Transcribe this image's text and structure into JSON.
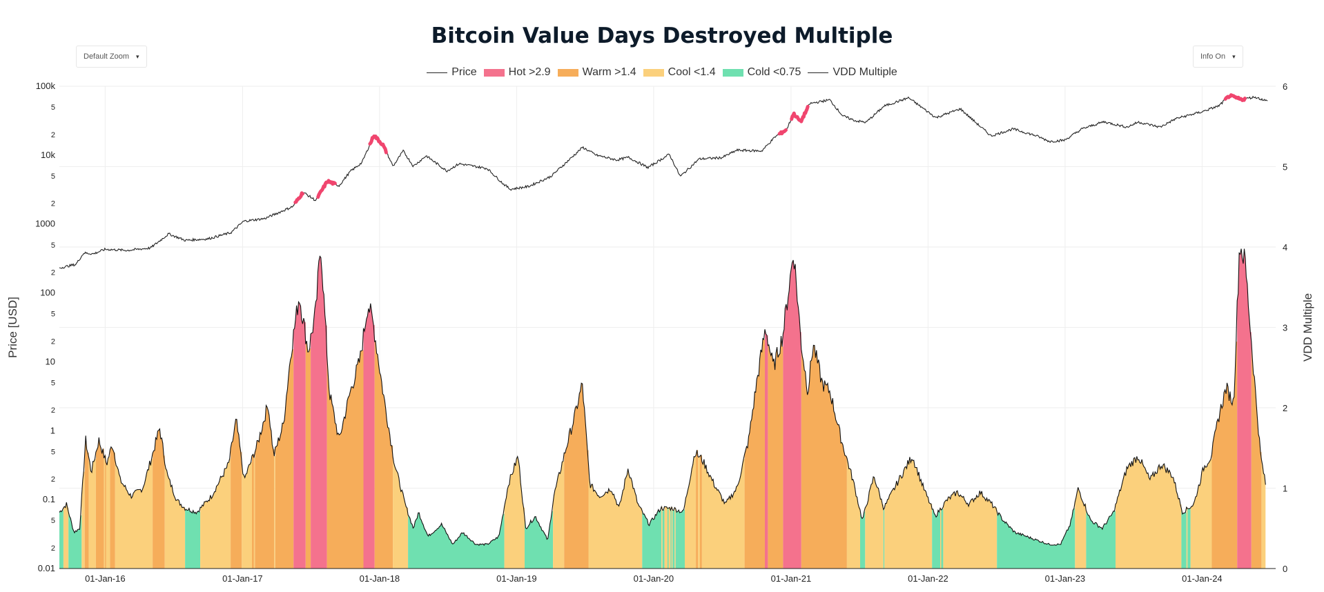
{
  "title": "Bitcoin Value Days Destroyed Multiple",
  "controls": {
    "zoom_label": "Default Zoom",
    "info_label": "Info On",
    "caret": "▾"
  },
  "legend": [
    {
      "name": "Price",
      "kind": "line",
      "color": "#222222"
    },
    {
      "name": "Hot >2.9",
      "kind": "box",
      "color": "#f4728d"
    },
    {
      "name": "Warm >1.4",
      "kind": "box",
      "color": "#f6ad5a"
    },
    {
      "name": "Cool <1.4",
      "kind": "box",
      "color": "#fbd07c"
    },
    {
      "name": "Cold <0.75",
      "kind": "box",
      "color": "#6fe0b0"
    },
    {
      "name": "VDD Multiple",
      "kind": "line",
      "color": "#222222"
    }
  ],
  "chart_data": {
    "type": "line",
    "title": "Bitcoin Value Days Destroyed Multiple",
    "xlabel": "",
    "ylabel": "Price [USD]",
    "y2label": "VDD Multiple",
    "xlim": [
      "2015-09-01",
      "2024-07-15"
    ],
    "x_ticks": [
      "01-Jan-16",
      "01-Jan-17",
      "01-Jan-18",
      "01-Jan-19",
      "01-Jan-20",
      "01-Jan-21",
      "01-Jan-22",
      "01-Jan-23",
      "01-Jan-24"
    ],
    "x_tick_dates": [
      "2016-01-01",
      "2017-01-01",
      "2018-01-01",
      "2019-01-01",
      "2020-01-01",
      "2021-01-01",
      "2022-01-01",
      "2023-01-01",
      "2024-01-01"
    ],
    "y_scale": "log",
    "ylim": [
      0.01,
      100000
    ],
    "y_ticks_major": [
      "0.01",
      "0.1",
      "1",
      "10",
      "100",
      "1000",
      "10k",
      "100k"
    ],
    "y_ticks_minor": [
      "2",
      "5"
    ],
    "y2lim": [
      0,
      6
    ],
    "y2_ticks": [
      "0",
      "1",
      "2",
      "3",
      "4",
      "5",
      "6"
    ],
    "bands": [
      {
        "name": "Hot >2.9",
        "min": 2.9,
        "color": "#f4728d"
      },
      {
        "name": "Warm >1.4",
        "min": 1.4,
        "color": "#f6ad5a"
      },
      {
        "name": "Cool <1.4",
        "min": 0.75,
        "color": "#fbd07c"
      },
      {
        "name": "Cold <0.75",
        "min": 0,
        "color": "#6fe0b0"
      }
    ],
    "series": [
      {
        "name": "Price",
        "axis": "y",
        "color": "#222222",
        "hot_color": "#f0456e",
        "points": [
          [
            "2015-09-01",
            230
          ],
          [
            "2015-10-15",
            260
          ],
          [
            "2015-11-05",
            380
          ],
          [
            "2015-12-01",
            370
          ],
          [
            "2016-01-01",
            430
          ],
          [
            "2016-03-01",
            415
          ],
          [
            "2016-05-01",
            450
          ],
          [
            "2016-06-18",
            720
          ],
          [
            "2016-08-01",
            580
          ],
          [
            "2016-10-01",
            610
          ],
          [
            "2016-12-01",
            750
          ],
          [
            "2017-01-04",
            1100
          ],
          [
            "2017-03-01",
            1200
          ],
          [
            "2017-05-15",
            1800
          ],
          [
            "2017-06-11",
            2900
          ],
          [
            "2017-07-15",
            2200
          ],
          [
            "2017-08-15",
            4200
          ],
          [
            "2017-09-15",
            3600
          ],
          [
            "2017-10-15",
            5800
          ],
          [
            "2017-11-15",
            7800
          ],
          [
            "2017-12-17",
            19500
          ],
          [
            "2018-01-10",
            14000
          ],
          [
            "2018-02-06",
            6900
          ],
          [
            "2018-03-05",
            11500
          ],
          [
            "2018-04-01",
            6900
          ],
          [
            "2018-05-05",
            9800
          ],
          [
            "2018-06-29",
            5900
          ],
          [
            "2018-08-01",
            7500
          ],
          [
            "2018-10-15",
            6400
          ],
          [
            "2018-11-25",
            3900
          ],
          [
            "2018-12-15",
            3200
          ],
          [
            "2019-02-01",
            3500
          ],
          [
            "2019-04-02",
            4900
          ],
          [
            "2019-05-15",
            8000
          ],
          [
            "2019-06-26",
            13000
          ],
          [
            "2019-08-01",
            10000
          ],
          [
            "2019-09-25",
            8500
          ],
          [
            "2019-10-26",
            9300
          ],
          [
            "2019-12-17",
            6600
          ],
          [
            "2020-02-12",
            10300
          ],
          [
            "2020-03-12",
            4900
          ],
          [
            "2020-05-01",
            8800
          ],
          [
            "2020-07-01",
            9200
          ],
          [
            "2020-08-10",
            11800
          ],
          [
            "2020-10-15",
            11500
          ],
          [
            "2020-11-20",
            18500
          ],
          [
            "2020-12-20",
            23500
          ],
          [
            "2021-01-08",
            40000
          ],
          [
            "2021-01-27",
            30500
          ],
          [
            "2021-02-20",
            56000
          ],
          [
            "2021-04-14",
            63500
          ],
          [
            "2021-05-19",
            37000
          ],
          [
            "2021-06-22",
            31500
          ],
          [
            "2021-07-20",
            30000
          ],
          [
            "2021-09-06",
            51500
          ],
          [
            "2021-11-10",
            68000
          ],
          [
            "2022-01-22",
            35000
          ],
          [
            "2022-03-28",
            47000
          ],
          [
            "2022-05-12",
            28500
          ],
          [
            "2022-06-18",
            19000
          ],
          [
            "2022-08-15",
            24000
          ],
          [
            "2022-10-15",
            19200
          ],
          [
            "2022-11-21",
            15800
          ],
          [
            "2022-12-31",
            16500
          ],
          [
            "2023-02-15",
            24000
          ],
          [
            "2023-04-14",
            30500
          ],
          [
            "2023-06-15",
            25500
          ],
          [
            "2023-07-15",
            30200
          ],
          [
            "2023-09-11",
            25500
          ],
          [
            "2023-10-24",
            34000
          ],
          [
            "2023-12-31",
            42500
          ],
          [
            "2024-02-15",
            52000
          ],
          [
            "2024-03-14",
            73000
          ],
          [
            "2024-04-15",
            64000
          ],
          [
            "2024-05-20",
            70000
          ],
          [
            "2024-06-24",
            60500
          ]
        ],
        "hot_segments": [
          [
            "2017-05-20",
            "2017-06-12"
          ],
          [
            "2017-07-20",
            "2017-09-05"
          ],
          [
            "2017-12-05",
            "2018-01-20"
          ],
          [
            "2020-12-01",
            "2020-12-20"
          ],
          [
            "2021-01-01",
            "2021-02-15"
          ],
          [
            "2024-03-01",
            "2024-04-25"
          ]
        ]
      },
      {
        "name": "VDD Multiple",
        "axis": "y2",
        "color": "#111111",
        "points": [
          [
            "2015-09-01",
            0.7
          ],
          [
            "2015-09-20",
            0.8
          ],
          [
            "2015-10-10",
            0.45
          ],
          [
            "2015-10-25",
            0.5
          ],
          [
            "2015-11-10",
            1.6
          ],
          [
            "2015-11-25",
            1.2
          ],
          [
            "2015-12-15",
            1.6
          ],
          [
            "2016-01-05",
            1.3
          ],
          [
            "2016-01-20",
            1.55
          ],
          [
            "2016-02-10",
            1.1
          ],
          [
            "2016-03-10",
            0.9
          ],
          [
            "2016-04-10",
            1.0
          ],
          [
            "2016-05-05",
            1.4
          ],
          [
            "2016-05-25",
            1.75
          ],
          [
            "2016-06-15",
            1.15
          ],
          [
            "2016-07-10",
            0.85
          ],
          [
            "2016-08-01",
            0.75
          ],
          [
            "2016-09-01",
            0.7
          ],
          [
            "2016-10-10",
            0.9
          ],
          [
            "2016-11-25",
            1.3
          ],
          [
            "2016-12-15",
            1.85
          ],
          [
            "2017-01-05",
            1.1
          ],
          [
            "2017-02-10",
            1.55
          ],
          [
            "2017-03-10",
            2.05
          ],
          [
            "2017-03-25",
            1.4
          ],
          [
            "2017-04-20",
            1.8
          ],
          [
            "2017-05-10",
            2.7
          ],
          [
            "2017-06-01",
            3.4
          ],
          [
            "2017-06-25",
            2.7
          ],
          [
            "2017-07-15",
            3.2
          ],
          [
            "2017-07-28",
            4.05
          ],
          [
            "2017-08-20",
            2.2
          ],
          [
            "2017-09-15",
            1.6
          ],
          [
            "2017-10-15",
            2.2
          ],
          [
            "2017-11-10",
            2.6
          ],
          [
            "2017-12-01",
            3.3
          ],
          [
            "2017-12-15",
            3.05
          ],
          [
            "2018-01-10",
            2.2
          ],
          [
            "2018-02-10",
            1.3
          ],
          [
            "2018-03-10",
            0.8
          ],
          [
            "2018-04-01",
            0.5
          ],
          [
            "2018-04-15",
            0.7
          ],
          [
            "2018-05-10",
            0.4
          ],
          [
            "2018-06-15",
            0.55
          ],
          [
            "2018-07-15",
            0.3
          ],
          [
            "2018-08-10",
            0.45
          ],
          [
            "2018-09-15",
            0.3
          ],
          [
            "2018-10-15",
            0.3
          ],
          [
            "2018-11-15",
            0.4
          ],
          [
            "2018-12-10",
            1.05
          ],
          [
            "2019-01-05",
            1.4
          ],
          [
            "2019-01-25",
            0.5
          ],
          [
            "2019-02-20",
            0.65
          ],
          [
            "2019-03-25",
            0.35
          ],
          [
            "2019-04-10",
            0.9
          ],
          [
            "2019-05-10",
            1.45
          ],
          [
            "2019-06-05",
            1.9
          ],
          [
            "2019-06-25",
            2.3
          ],
          [
            "2019-07-15",
            1.05
          ],
          [
            "2019-08-10",
            0.9
          ],
          [
            "2019-09-10",
            1.0
          ],
          [
            "2019-10-01",
            0.75
          ],
          [
            "2019-10-25",
            1.25
          ],
          [
            "2019-11-20",
            0.8
          ],
          [
            "2019-12-20",
            0.55
          ],
          [
            "2020-01-20",
            0.75
          ],
          [
            "2020-02-20",
            0.75
          ],
          [
            "2020-03-20",
            0.7
          ],
          [
            "2020-04-20",
            1.45
          ],
          [
            "2020-05-10",
            1.35
          ],
          [
            "2020-06-10",
            1.05
          ],
          [
            "2020-07-10",
            0.8
          ],
          [
            "2020-08-10",
            1.0
          ],
          [
            "2020-09-10",
            1.6
          ],
          [
            "2020-10-01",
            2.3
          ],
          [
            "2020-10-25",
            3.0
          ],
          [
            "2020-11-15",
            2.5
          ],
          [
            "2020-12-10",
            2.9
          ],
          [
            "2021-01-08",
            3.95
          ],
          [
            "2021-01-28",
            2.8
          ],
          [
            "2021-02-15",
            2.2
          ],
          [
            "2021-03-01",
            2.8
          ],
          [
            "2021-03-25",
            2.3
          ],
          [
            "2021-04-15",
            2.2
          ],
          [
            "2021-05-15",
            1.6
          ],
          [
            "2021-06-15",
            1.1
          ],
          [
            "2021-07-10",
            0.6
          ],
          [
            "2021-08-10",
            1.15
          ],
          [
            "2021-09-05",
            0.75
          ],
          [
            "2021-10-15",
            1.1
          ],
          [
            "2021-11-20",
            1.4
          ],
          [
            "2021-12-20",
            1.0
          ],
          [
            "2022-01-20",
            0.65
          ],
          [
            "2022-02-20",
            0.85
          ],
          [
            "2022-03-20",
            0.95
          ],
          [
            "2022-04-20",
            0.8
          ],
          [
            "2022-05-20",
            0.95
          ],
          [
            "2022-06-20",
            0.8
          ],
          [
            "2022-07-20",
            0.6
          ],
          [
            "2022-08-20",
            0.45
          ],
          [
            "2022-09-20",
            0.4
          ],
          [
            "2022-10-20",
            0.35
          ],
          [
            "2022-11-20",
            0.3
          ],
          [
            "2022-12-20",
            0.3
          ],
          [
            "2023-01-15",
            0.55
          ],
          [
            "2023-02-05",
            1.0
          ],
          [
            "2023-03-10",
            0.6
          ],
          [
            "2023-04-10",
            0.5
          ],
          [
            "2023-05-10",
            0.7
          ],
          [
            "2023-06-15",
            1.25
          ],
          [
            "2023-07-15",
            1.4
          ],
          [
            "2023-08-15",
            1.1
          ],
          [
            "2023-09-15",
            1.3
          ],
          [
            "2023-10-15",
            1.15
          ],
          [
            "2023-11-10",
            0.7
          ],
          [
            "2023-12-10",
            0.8
          ],
          [
            "2024-01-05",
            1.25
          ],
          [
            "2024-01-25",
            1.4
          ],
          [
            "2024-02-15",
            1.9
          ],
          [
            "2024-03-05",
            2.25
          ],
          [
            "2024-03-25",
            2.05
          ],
          [
            "2024-04-10",
            4.05
          ],
          [
            "2024-04-25",
            3.8
          ],
          [
            "2024-05-15",
            2.6
          ],
          [
            "2024-06-05",
            1.4
          ],
          [
            "2024-06-20",
            1.0
          ]
        ]
      }
    ]
  }
}
